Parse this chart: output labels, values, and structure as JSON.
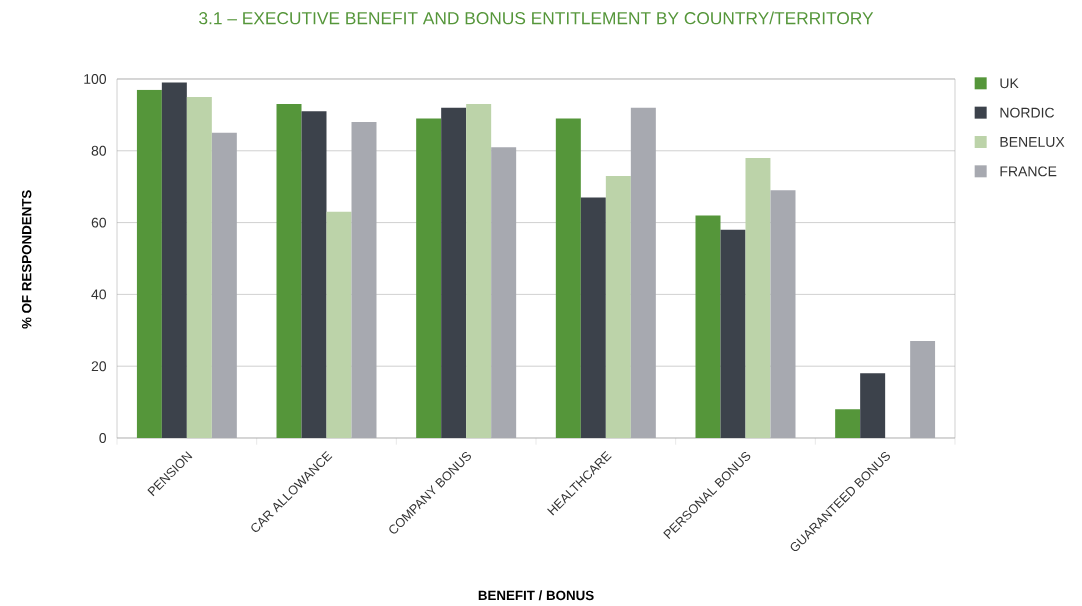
{
  "chart_data": {
    "type": "bar",
    "title": "3.1 – EXECUTIVE BENEFIT AND BONUS ENTITLEMENT BY COUNTRY/TERRITORY",
    "xlabel": "BENEFIT / BONUS",
    "ylabel": "% OF RESPONDENTS",
    "categories": [
      "PENSION",
      "CAR ALLOWANCE",
      "COMPANY BONUS",
      "HEALTHCARE",
      "PERSONAL BONUS",
      "GUARANTEED BONUS"
    ],
    "series": [
      {
        "name": "UK",
        "color": "#55963a",
        "values": [
          97,
          93,
          89,
          89,
          62,
          8
        ]
      },
      {
        "name": "NORDIC",
        "color": "#3c424b",
        "values": [
          99,
          91,
          92,
          67,
          58,
          18
        ]
      },
      {
        "name": "BENELUX",
        "color": "#bcd3a9",
        "values": [
          95,
          63,
          93,
          73,
          78,
          null
        ]
      },
      {
        "name": "FRANCE",
        "color": "#a7a9b0",
        "values": [
          85,
          88,
          81,
          92,
          69,
          27
        ]
      }
    ],
    "ylim": [
      0,
      100
    ],
    "yticks": [
      0,
      20,
      40,
      60,
      80,
      100
    ],
    "grid": "y",
    "legend": "top right"
  }
}
